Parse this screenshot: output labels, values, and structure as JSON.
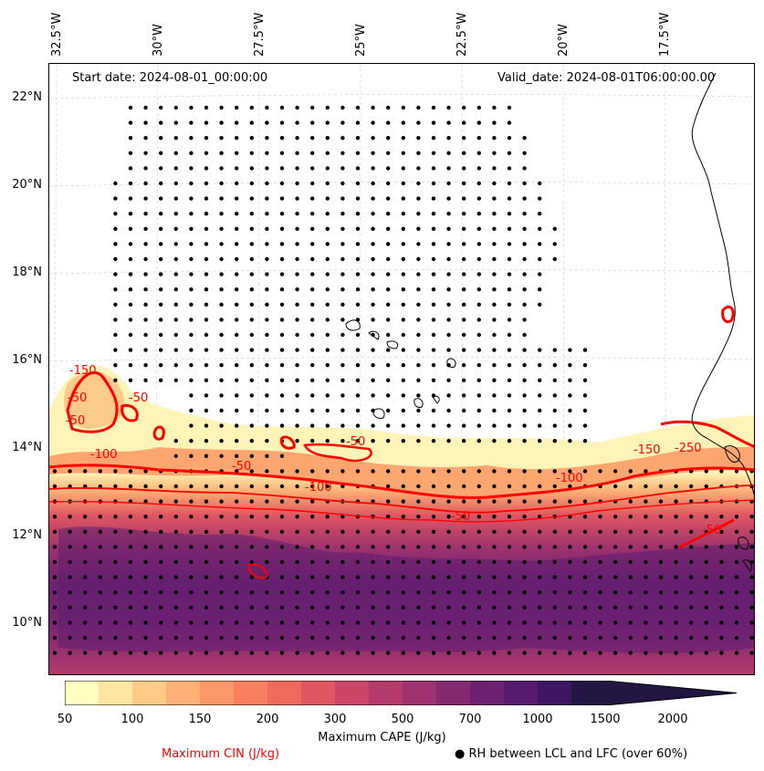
{
  "map": {
    "start_date": "Start date: 2024-08-01_00:00:00",
    "valid_date": "Valid_date: 2024-08-01T06:00:00.00",
    "lon_ticks": [
      "32.5°W",
      "30°W",
      "27.5°W",
      "25°W",
      "22.5°W",
      "20°W",
      "17.5°W"
    ],
    "lat_ticks": [
      "22°N",
      "20°N",
      "18°N",
      "16°N",
      "14°N",
      "12°N",
      "10°N"
    ],
    "cin_contour_labels": [
      "-150",
      "-50",
      "-50",
      "-100",
      "-50",
      "-100",
      "-50",
      "-50",
      "-100",
      "-150",
      "-250",
      "-50",
      "-50"
    ]
  },
  "colorbar": {
    "tick_labels": [
      "50",
      "100",
      "150",
      "200",
      "300",
      "500",
      "700",
      "1000",
      "1500",
      "2000"
    ],
    "colors": [
      "#fffdbf",
      "#fee6a0",
      "#fecb86",
      "#feb076",
      "#fd9868",
      "#f8805f",
      "#ee6a5d",
      "#e05661",
      "#cb4667",
      "#b53b6c",
      "#9d326f",
      "#852a71",
      "#6d2271",
      "#561b6e",
      "#3d1761",
      "#231544"
    ],
    "label": "Maximum CAPE (J/kg)"
  },
  "legend": {
    "cin_label": "Maximum CIN (J/kg)",
    "rh_label": "● RH between LCL and LFC (over 60%)"
  },
  "colors": {
    "cin_contour": "#ff0000",
    "coastline": "#000000"
  }
}
